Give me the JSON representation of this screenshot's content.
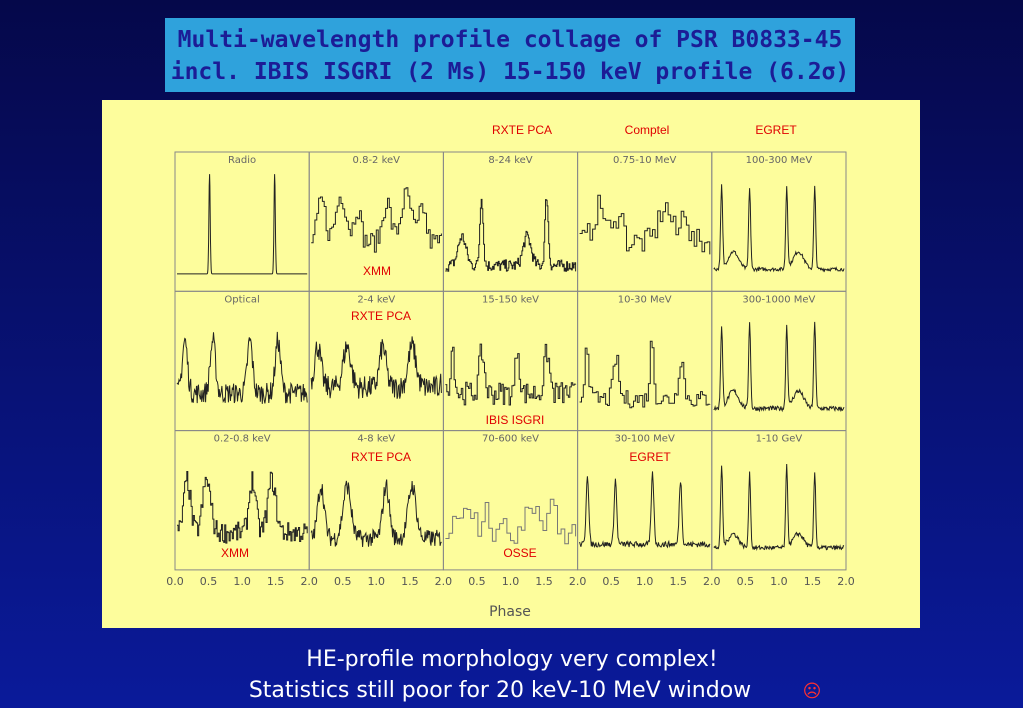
{
  "title": {
    "lines": [
      "Multi-wavelength profile collage of PSR B0833-45",
      "incl. IBIS ISGRI (2 Ms) 15-150 keV profile (6.2σ)"
    ]
  },
  "panels": [
    {
      "label": "Radio"
    },
    {
      "label": "0.8-2 keV"
    },
    {
      "label": "8-24 keV"
    },
    {
      "label": "0.75-10 MeV"
    },
    {
      "label": "100-300 MeV"
    },
    {
      "label": "Optical"
    },
    {
      "label": "2-4 keV"
    },
    {
      "label": "15-150 keV"
    },
    {
      "label": "10-30 MeV"
    },
    {
      "label": "300-1000 MeV"
    },
    {
      "label": "0.2-0.8 keV"
    },
    {
      "label": "4-8 keV"
    },
    {
      "label": "70-600 keV"
    },
    {
      "label": "30-100 MeV"
    },
    {
      "label": "1-10 GeV"
    }
  ],
  "instrument_labels": [
    "RXTE PCA",
    "Comptel",
    "EGRET",
    "XMM",
    "RXTE PCA",
    "IBIS ISGRI",
    "RXTE PCA",
    "EGRET",
    "XMM",
    "OSSE"
  ],
  "x_axis": {
    "ticks": [
      "0.0",
      "0.5",
      "1.0",
      "1.5",
      "2.0",
      "0.5",
      "1.0",
      "1.5",
      "2.0",
      "0.5",
      "1.0",
      "1.5",
      "2.0",
      "0.5",
      "1.0",
      "1.5",
      "2.0",
      "0.5",
      "1.0",
      "1.5",
      "2.0"
    ],
    "label": "Phase"
  },
  "footer": {
    "lines": [
      "HE-profile morphology very complex!",
      "Statistics still poor for 20 keV-10 MeV window"
    ],
    "emoticon": "☹"
  }
}
